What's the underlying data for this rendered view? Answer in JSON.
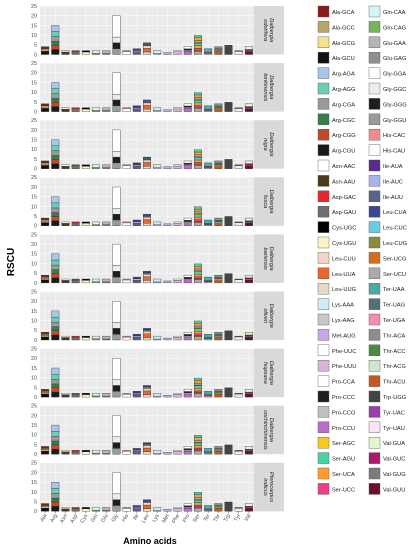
{
  "chart_data": {
    "type": "stacked-bar-facets",
    "xlabel": "Amino acids",
    "ylabel": "RSCU",
    "ylim": [
      0,
      25
    ],
    "yticks": [
      0,
      5,
      10,
      15,
      20,
      25
    ],
    "categories": [
      "Ala",
      "Arg",
      "Asn",
      "Asp",
      "Cys",
      "Gln",
      "Glu",
      "Gly",
      "His",
      "Ile",
      "Leu",
      "Lys",
      "Met",
      "Phe",
      "Pro",
      "Ser",
      "Ter",
      "Thr",
      "Trp",
      "Tyr",
      "Val"
    ],
    "panels": [
      {
        "label": "Dalbergia odorifera",
        "label_lines": [
          "Dalbergia",
          "odorifera"
        ]
      },
      {
        "label": "Dalbergia tonkinensis",
        "label_lines": [
          "Dalbergia",
          "tonkinensis"
        ]
      },
      {
        "label": "Dalbergia nigra",
        "label_lines": [
          "Dalbergia",
          "nigra"
        ]
      },
      {
        "label": "Dalbergia fusca",
        "label_lines": [
          "Dalbergia",
          "fusca"
        ]
      },
      {
        "label": "Dalbergia bariensis",
        "label_lines": [
          "Dalbergia",
          "bariensis"
        ]
      },
      {
        "label": "Dalbergia oliveri",
        "label_lines": [
          "Dalbergia",
          "oliveri"
        ]
      },
      {
        "label": "Dalbergia hupeana",
        "label_lines": [
          "Dalbergia",
          "hupeana"
        ]
      },
      {
        "label": "Dalbergia cochinchinensis",
        "label_lines": [
          "Dalbergia",
          "cochinchinensis"
        ]
      },
      {
        "label": "Pterocarpus indicus",
        "label_lines": [
          "Pterocarpus",
          "indicus"
        ]
      }
    ],
    "codon_stacks": {
      "Ala": [
        [
          "Ala-GCU",
          1.7
        ],
        [
          "Ala-GCG",
          0.6
        ],
        [
          "Ala-GCC",
          0.7
        ],
        [
          "Ala-GCA",
          1.0
        ]
      ],
      "Arg": [
        [
          "Arg-CGU",
          2.6
        ],
        [
          "Arg-CGG",
          2.2
        ],
        [
          "Arg-CGC",
          2.0
        ],
        [
          "Arg-CGA",
          2.4
        ],
        [
          "Arg-AGG",
          2.6
        ],
        [
          "Arg-AGA",
          3.2
        ]
      ],
      "Asn": [
        [
          "Asn-AAU",
          1.3
        ],
        [
          "Asn-AAC",
          0.7
        ]
      ],
      "Asp": [
        [
          "Asp-GAU",
          1.5
        ],
        [
          "Asp-GAC",
          0.5
        ]
      ],
      "Cys": [
        [
          "Cys-UGU",
          1.3
        ],
        [
          "Cys-UGC",
          0.7
        ]
      ],
      "Gln": [
        [
          "Gln-CAG",
          0.6
        ],
        [
          "Gln-CAA",
          1.4
        ]
      ],
      "Glu": [
        [
          "Glu-GAG",
          0.5
        ],
        [
          "Glu-GAA",
          1.5
        ]
      ],
      "Gly": [
        [
          "Gly-GGU",
          3.0
        ],
        [
          "Gly-GGG",
          3.0
        ],
        [
          "Gly-GGC",
          3.0
        ],
        [
          "Gly-GGA",
          11.0
        ]
      ],
      "His": [
        [
          "His-CAU",
          1.5
        ],
        [
          "His-CAC",
          0.5
        ]
      ],
      "Ile": [
        [
          "Ile-AUU",
          1.4
        ],
        [
          "Ile-AUC",
          0.7
        ],
        [
          "Ile-AUA",
          0.9
        ]
      ],
      "Leu": [
        [
          "Leu-UUG",
          1.3
        ],
        [
          "Leu-UUA",
          1.9
        ],
        [
          "Leu-CUU",
          1.3
        ],
        [
          "Leu-CUG",
          0.4
        ],
        [
          "Leu-CUC",
          0.4
        ],
        [
          "Leu-CUA",
          0.7
        ]
      ],
      "Lys": [
        [
          "Lys-AAG",
          0.5
        ],
        [
          "Lys-AAA",
          1.5
        ]
      ],
      "Met": [
        [
          "Met-AUG",
          1.0
        ]
      ],
      "Phe": [
        [
          "Phe-UUU",
          1.4
        ],
        [
          "Phe-UUC",
          0.6
        ]
      ],
      "Pro": [
        [
          "Pro-CCU",
          1.6
        ],
        [
          "Pro-CCG",
          0.6
        ],
        [
          "Pro-CCC",
          0.7
        ],
        [
          "Pro-CCA",
          1.1
        ]
      ],
      "Ser": [
        [
          "Ser-UCU",
          1.7
        ],
        [
          "Ser-UCG",
          0.5
        ],
        [
          "Ser-UCC",
          1.0
        ],
        [
          "Ser-UCA",
          1.3
        ],
        [
          "Ser-AGU",
          1.3
        ],
        [
          "Ser-AGC",
          0.4
        ],
        [
          "Ser-UCU",
          1.0
        ],
        [
          "Ser-UCA",
          1.4
        ],
        [
          "Ser-AGU",
          1.2
        ]
      ],
      "Ter": [
        [
          "Ter-UGA",
          0.6
        ],
        [
          "Ter-UAG",
          0.6
        ],
        [
          "Ter-UAA",
          1.8
        ]
      ],
      "Thr": [
        [
          "Thr-ACU",
          1.6
        ],
        [
          "Thr-ACG",
          0.5
        ],
        [
          "Thr-ACC",
          0.8
        ],
        [
          "Thr-ACA",
          1.1
        ]
      ],
      "Trp": [
        [
          "Trp-UGG",
          4.8
        ]
      ],
      "Tyr": [
        [
          "Tyr-UAU",
          1.6
        ],
        [
          "Tyr-UAC",
          0.4
        ]
      ],
      "Val": [
        [
          "Val-GUU",
          1.5
        ],
        [
          "Val-GUG",
          0.6
        ],
        [
          "Val-GUC",
          0.5
        ],
        [
          "Val-GUA",
          1.4
        ]
      ]
    },
    "legend": [
      [
        "Ala-GCA",
        "#8B1A1A"
      ],
      [
        "Ala-GCC",
        "#B5A66A"
      ],
      [
        "Ala-GCG",
        "#F5E08C"
      ],
      [
        "Ala-GCU",
        "#111111"
      ],
      [
        "Arg-AGA",
        "#A9C6E8"
      ],
      [
        "Arg-AGG",
        "#6CCDB5"
      ],
      [
        "Arg-CGA",
        "#9A9A9A"
      ],
      [
        "Arg-CGC",
        "#3A7D4C"
      ],
      [
        "Arg-CGG",
        "#C04A2B"
      ],
      [
        "Arg-CGU",
        "#1A1A1A"
      ],
      [
        "Asn-AAC",
        "#FFFFFF"
      ],
      [
        "Asn-AAU",
        "#4B3A18"
      ],
      [
        "Asp-GAC",
        "#E8262E"
      ],
      [
        "Asp-GAU",
        "#6E6E6E"
      ],
      [
        "Cys-UGC",
        "#000000"
      ],
      [
        "Cys-UGU",
        "#FCF4C4"
      ],
      [
        "Leu-CUU",
        "#F6D3C8"
      ],
      [
        "Leu-UUA",
        "#E8672E"
      ],
      [
        "Leu-UUG",
        "#E3DCC5"
      ],
      [
        "Lys-AAA",
        "#CFEBF5"
      ],
      [
        "Lys-AAG",
        "#C8C8C8"
      ],
      [
        "Met-AUG",
        "#C6A8E6"
      ],
      [
        "Phe-UUC",
        "#FFFFFF"
      ],
      [
        "Phe-UUU",
        "#D7B4D8"
      ],
      [
        "Pro-CCA",
        "#FFFFFF"
      ],
      [
        "Pro-CCC",
        "#1F1F1F"
      ],
      [
        "Pro-CCG",
        "#BFBFBF"
      ],
      [
        "Pro-CCU",
        "#B66FC8"
      ],
      [
        "Ser-AGC",
        "#F7C81E"
      ],
      [
        "Ser-AGU",
        "#47D3A8"
      ],
      [
        "Ser-UCA",
        "#FF9C2E"
      ],
      [
        "Ser-UCC",
        "#E83F86"
      ],
      [
        "Gln-CAA",
        "#D5F5F4"
      ],
      [
        "Gln-CAG",
        "#76B55A"
      ],
      [
        "Glu-GAA",
        "#B5B5B5"
      ],
      [
        "Glu-GAG",
        "#909090"
      ],
      [
        "Gly-GGA",
        "#FFFFFF"
      ],
      [
        "Gly-GGC",
        "#ECECEC"
      ],
      [
        "Gly-GGG",
        "#1E1E1E"
      ],
      [
        "Gly-GGU",
        "#9A9A9A"
      ],
      [
        "His-CAC",
        "#F58A8A"
      ],
      [
        "His-CAU",
        "#FFFFFF"
      ],
      [
        "Ile-AUA",
        "#5B2B8C"
      ],
      [
        "Ile-AUC",
        "#A7B2F0"
      ],
      [
        "Ile-AUU",
        "#58628A"
      ],
      [
        "Leu-CUA",
        "#3F4596"
      ],
      [
        "Leu-CUC",
        "#66CDE0"
      ],
      [
        "Leu-CUG",
        "#8A8C3A"
      ],
      [
        "Ser-UCG",
        "#D86D1E"
      ],
      [
        "Ser-UCU",
        "#A9A9A9"
      ],
      [
        "Ter-UAA",
        "#4EA8A4"
      ],
      [
        "Ter-UAG",
        "#546E7A"
      ],
      [
        "Ter-UGA",
        "#F28EAF"
      ],
      [
        "Thr-ACA",
        "#8E8E8E"
      ],
      [
        "Thr-ACC",
        "#4C8A3F"
      ],
      [
        "Thr-ACG",
        "#CFE7CF"
      ],
      [
        "Thr-ACU",
        "#C05A1E"
      ],
      [
        "Trp-UGG",
        "#444444"
      ],
      [
        "Tyr-UAC",
        "#9E3FAE"
      ],
      [
        "Tyr-UAU",
        "#F6E7F2"
      ],
      [
        "Val-GUA",
        "#E6F5CC"
      ],
      [
        "Val-GUC",
        "#AD176E"
      ],
      [
        "Val-GUG",
        "#7C7C7C"
      ],
      [
        "Val-GUU",
        "#6B0F2E"
      ]
    ]
  }
}
